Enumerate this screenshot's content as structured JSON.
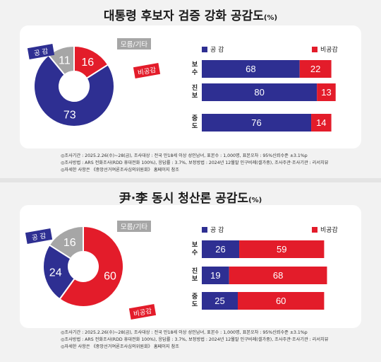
{
  "chart_data": [
    {
      "type": "pie",
      "title": "대통령 후보자 검증 강화 공감도",
      "unit": "(%)",
      "pie": [
        {
          "label": "공 감",
          "value": 73,
          "color": "#2e2f92"
        },
        {
          "label": "비공감",
          "value": 16,
          "color": "#e31c2a"
        },
        {
          "label": "모름/기타",
          "value": 11,
          "color": "#a6a6a6"
        }
      ],
      "bar": {
        "type": "bar",
        "orientation": "horizontal",
        "stacked": true,
        "categories": [
          "보수",
          "진보",
          "중도"
        ],
        "series": [
          {
            "name": "공 감",
            "color": "#2e2f92",
            "values": [
              68,
              80,
              76
            ]
          },
          {
            "name": "비공감",
            "color": "#e31c2a",
            "values": [
              22,
              13,
              14
            ]
          }
        ]
      },
      "notes": [
        "◎조사기간 : 2025.2.26(수)~28(금), 조사대상 : 전국 만18세 이상 성인남녀, 표본수 : 1,000명, 표본오차 : 95%신뢰수준 ±3.1%p",
        "◎조사방법 : ARS 전화조사(RDD 휴대전화 100%), 응답률 : 3.7%, 보정방법 : 2024년 12월말 인구비례(셀가중), 조사주관·조사기관 : 리서치뷰",
        "◎자세한 사항은 《중앙선거여론조사심의위원회》 홈페이지 참조"
      ]
    },
    {
      "type": "pie",
      "title": "尹·李 동시 청산론 공감도",
      "unit": "(%)",
      "pie": [
        {
          "label": "공 감",
          "value": 24,
          "color": "#2e2f92"
        },
        {
          "label": "비공감",
          "value": 60,
          "color": "#e31c2a"
        },
        {
          "label": "모름/기타",
          "value": 16,
          "color": "#a6a6a6"
        }
      ],
      "bar": {
        "type": "bar",
        "orientation": "horizontal",
        "stacked": true,
        "categories": [
          "보수",
          "진보",
          "중도"
        ],
        "series": [
          {
            "name": "공 감",
            "color": "#2e2f92",
            "values": [
              26,
              19,
              25
            ]
          },
          {
            "name": "비공감",
            "color": "#e31c2a",
            "values": [
              59,
              68,
              60
            ]
          }
        ]
      },
      "notes": [
        "◎조사기간 : 2025.2.26(수)~28(금), 조사대상 : 전국 만18세 이상 성인남녀, 표본수 : 1,000명, 표본오차 : 95%신뢰수준 ±3.1%p",
        "◎조사방법 : ARS 전화조사(RDD 휴대전화 100%), 응답률 : 3.7%, 보정방법 : 2024년 12월말 인구비례(셀가중), 조사주관·조사기관 : 리서치뷰",
        "◎자세한 사항은 《중앙선거여론조사심의위원회》 홈페이지 참조"
      ]
    }
  ]
}
